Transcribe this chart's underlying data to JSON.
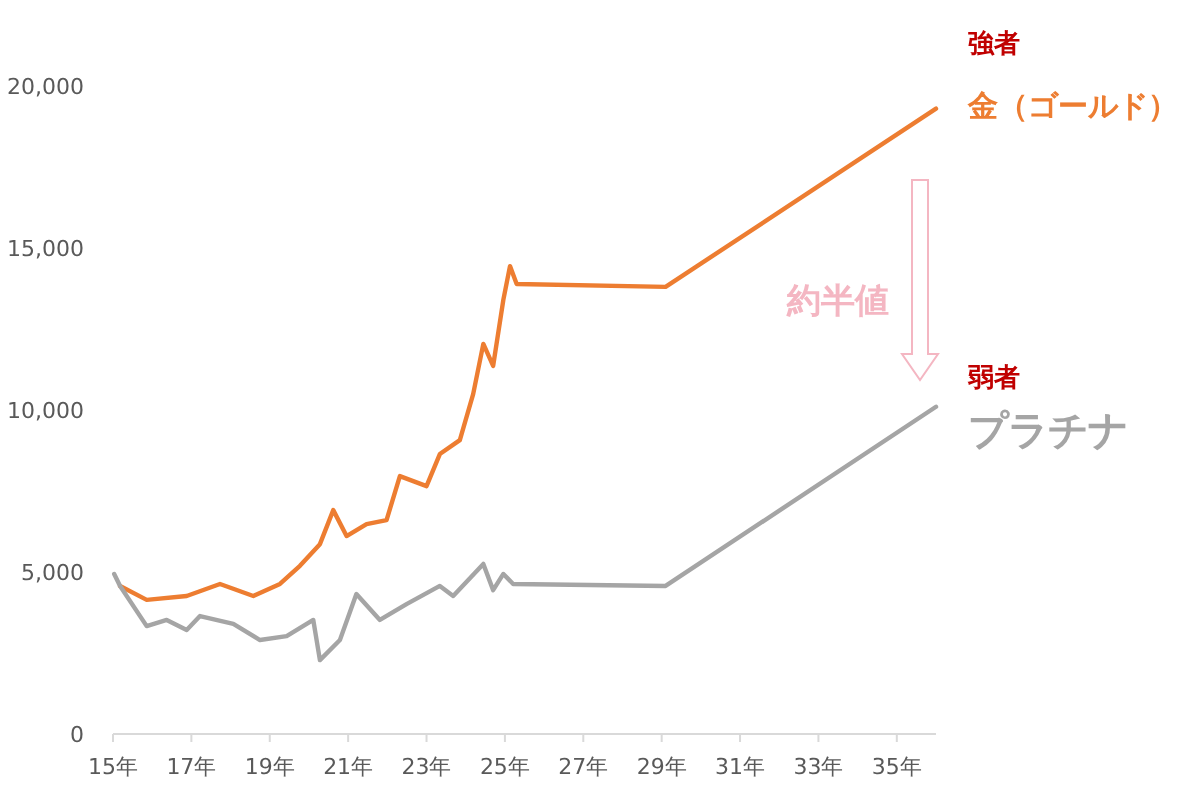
{
  "chart_data": {
    "type": "line",
    "grid": false,
    "marker": "none",
    "line_style": "solid",
    "xlim": [
      15,
      36
    ],
    "ylim": [
      0,
      20000
    ],
    "xticks": [
      {
        "value": 15,
        "label": "15年"
      },
      {
        "value": 17,
        "label": "17年"
      },
      {
        "value": 19,
        "label": "19年"
      },
      {
        "value": 21,
        "label": "21年"
      },
      {
        "value": 23,
        "label": "23年"
      },
      {
        "value": 25,
        "label": "25年"
      },
      {
        "value": 27,
        "label": "27年"
      },
      {
        "value": 29,
        "label": "29年"
      },
      {
        "value": 31,
        "label": "31年"
      },
      {
        "value": 33,
        "label": "33年"
      },
      {
        "value": 35,
        "label": "35年"
      }
    ],
    "yticks": [
      0,
      {
        "value": 5000,
        "label": "5,000"
      },
      {
        "value": 10000,
        "label": "10,000"
      },
      {
        "value": 15000,
        "label": "15,000"
      },
      {
        "value": 20000,
        "label": "20,000"
      }
    ],
    "series": [
      {
        "name": "金（ゴールド）",
        "color": "#ed7d31",
        "x": [
          15.18,
          15.86,
          16.88,
          17.73,
          18.58,
          19.26,
          19.77,
          20.28,
          20.62,
          20.96,
          21.47,
          21.98,
          22.32,
          23.0,
          23.34,
          23.85,
          24.19,
          24.45,
          24.7,
          24.96,
          25.13,
          25.3,
          29.1,
          36.0
        ],
        "values": [
          4570,
          4140,
          4260,
          4630,
          4260,
          4630,
          5190,
          5860,
          6910,
          6110,
          6480,
          6600,
          7960,
          7650,
          8640,
          9070,
          10490,
          12040,
          11360,
          13400,
          14440,
          13890,
          13800,
          19300
        ]
      },
      {
        "name": "プラチナ",
        "color": "#a5a5a5",
        "x": [
          15.03,
          15.18,
          15.86,
          16.37,
          16.88,
          17.22,
          18.07,
          18.75,
          19.43,
          20.11,
          20.28,
          20.79,
          21.21,
          21.81,
          22.49,
          23.34,
          23.68,
          24.45,
          24.7,
          24.96,
          25.21,
          29.1,
          36.0
        ],
        "values": [
          4940,
          4570,
          3330,
          3520,
          3210,
          3640,
          3400,
          2900,
          3020,
          3520,
          2280,
          2900,
          4320,
          3520,
          4010,
          4570,
          4260,
          5250,
          4440,
          4940,
          4630,
          4570,
          10100
        ]
      }
    ],
    "annotations": [
      "強者",
      "約半値",
      "弱者"
    ]
  }
}
